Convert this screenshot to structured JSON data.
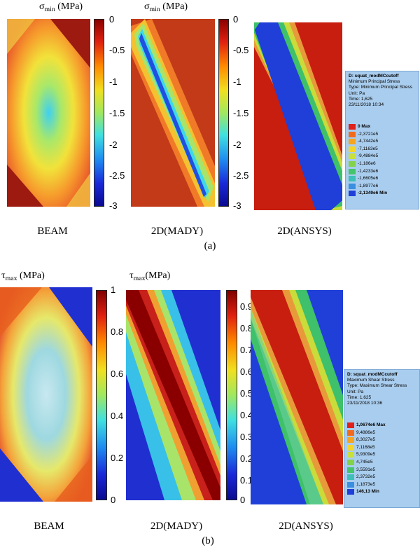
{
  "panel_a": {
    "titles": {
      "beam": "σ",
      "beam_sub": "min",
      "beam_unit": " (MPa)",
      "mady": "σ",
      "mady_sub": "min",
      "mady_unit": " (MPa)"
    },
    "colorbar_ticks": [
      "0",
      "-0.5",
      "-1",
      "-1.5",
      "-2",
      "-2.5",
      "-3"
    ],
    "labels": [
      "BEAM",
      "2D(MADY)",
      "2D(ANSYS)"
    ],
    "caption": "(a)",
    "legend": {
      "header": [
        "D: squat_modMCcutoff",
        "Minimum Principal Stress",
        "Type: Minimum Principal Stress",
        "Unit: Pa",
        "Time: 1,625",
        "23/11/2018 10:34"
      ],
      "entries": [
        {
          "text": "0 Max",
          "color": "#e0201a",
          "bold": true
        },
        {
          "text": "-2,3721e5",
          "color": "#f26b1d",
          "bold": false
        },
        {
          "text": "-4,7442e5",
          "color": "#f7a51f",
          "bold": false
        },
        {
          "text": "-7,1163e5",
          "color": "#f4d52a",
          "bold": false
        },
        {
          "text": "-9,4884e5",
          "color": "#c9e13a",
          "bold": false
        },
        {
          "text": "-1,186e6",
          "color": "#83d24a",
          "bold": false
        },
        {
          "text": "-1,4233e6",
          "color": "#46c46a",
          "bold": false
        },
        {
          "text": "-1,6605e6",
          "color": "#3fbfb8",
          "bold": false
        },
        {
          "text": "-1,8977e6",
          "color": "#3a8fe0",
          "bold": false
        },
        {
          "text": "-2,1349e6 Min",
          "color": "#1f3fd8",
          "bold": true
        }
      ]
    }
  },
  "panel_b": {
    "titles": {
      "beam": "τ",
      "beam_sub": "max",
      "beam_unit": " (MPa)",
      "mady": "τ",
      "mady_sub": "max",
      "mady_unit": "(MPa)"
    },
    "colorbar1_ticks": [
      "1",
      "0.8",
      "0.6",
      "0.4",
      "0.2",
      "0"
    ],
    "colorbar2_ticks": [
      "0.9",
      "0.8",
      "0.7",
      "0.6",
      "0.5",
      "0.4",
      "0.3",
      "0.2",
      "0.1",
      "0"
    ],
    "labels": [
      "BEAM",
      "2D(MADY)",
      "2D(ANSYS)"
    ],
    "caption": "(b)",
    "legend": {
      "header": [
        "D: squat_modMCcutoff",
        "Maximum Shear Stress",
        "Type: Maximum Shear Stress",
        "Unit: Pa",
        "Time: 1,625",
        "23/11/2018 10:36"
      ],
      "entries": [
        {
          "text": "1,0674e6 Max",
          "color": "#e0201a",
          "bold": true
        },
        {
          "text": "9,4886e5",
          "color": "#f26b1d",
          "bold": false
        },
        {
          "text": "8,3027e5",
          "color": "#f7a51f",
          "bold": false
        },
        {
          "text": "7,1168e5",
          "color": "#f4d52a",
          "bold": false
        },
        {
          "text": "5,9309e5",
          "color": "#c9e13a",
          "bold": false
        },
        {
          "text": "4,745e5",
          "color": "#83d24a",
          "bold": false
        },
        {
          "text": "3,5591e5",
          "color": "#46c46a",
          "bold": false
        },
        {
          "text": "2,3732e5",
          "color": "#3fbfb8",
          "bold": false
        },
        {
          "text": "1,1873e5",
          "color": "#3a8fe0",
          "bold": false
        },
        {
          "text": "146,13 Min",
          "color": "#1f3fd8",
          "bold": true
        }
      ]
    }
  }
}
